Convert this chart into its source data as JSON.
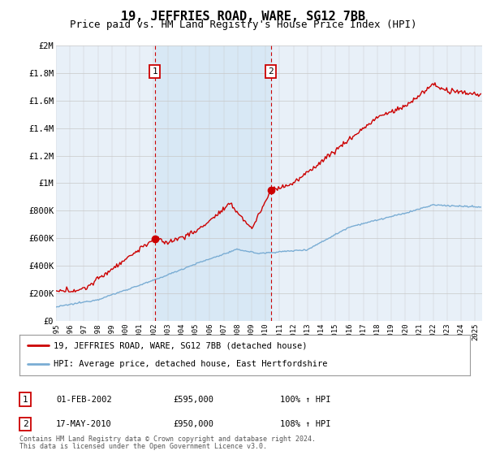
{
  "title": "19, JEFFRIES ROAD, WARE, SG12 7BB",
  "subtitle": "Price paid vs. HM Land Registry's House Price Index (HPI)",
  "title_fontsize": 11,
  "subtitle_fontsize": 9,
  "ylabel_ticks": [
    "£0",
    "£200K",
    "£400K",
    "£600K",
    "£800K",
    "£1M",
    "£1.2M",
    "£1.4M",
    "£1.6M",
    "£1.8M",
    "£2M"
  ],
  "ytick_values": [
    0,
    200000,
    400000,
    600000,
    800000,
    1000000,
    1200000,
    1400000,
    1600000,
    1800000,
    2000000
  ],
  "ylim": [
    0,
    2000000
  ],
  "xlim_start": 1995.0,
  "xlim_end": 2025.5,
  "sale1_x": 2002.083,
  "sale1_y": 595000,
  "sale2_x": 2010.375,
  "sale2_y": 950000,
  "sale_color": "#cc0000",
  "hpi_color": "#7aadd4",
  "shade_color": "#d8e8f5",
  "background_color": "#ffffff",
  "plot_bg_color": "#e8f0f8",
  "grid_color": "#c8c8c8",
  "legend_line1": "19, JEFFRIES ROAD, WARE, SG12 7BB (detached house)",
  "legend_line2": "HPI: Average price, detached house, East Hertfordshire",
  "footnote1": "Contains HM Land Registry data © Crown copyright and database right 2024.",
  "footnote2": "This data is licensed under the Open Government Licence v3.0.",
  "box1_label": "1",
  "box1_date": "01-FEB-2002",
  "box1_price": "£595,000",
  "box1_hpi": "100% ↑ HPI",
  "box2_label": "2",
  "box2_date": "17-MAY-2010",
  "box2_price": "£950,000",
  "box2_hpi": "108% ↑ HPI"
}
